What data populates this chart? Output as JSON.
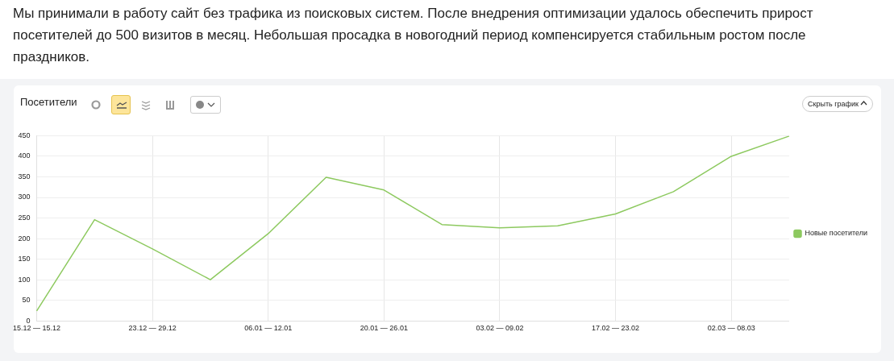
{
  "chart_data": {
    "type": "line",
    "title": "Посетители",
    "annotations": [
      "Мы принимали в работу сайт без трафика из поисковых систем. После внедрения оптимизации удалось обеспечить прирост посетителей до 500 визитов в месяц. Небольшая просадка в новогодний период компенсируется стабильным ростом после праздников.",
      "Скрыть график"
    ],
    "categories": [
      "15.12 — 15.12",
      null,
      "23.12 — 29.12",
      null,
      "06.01 — 12.01",
      null,
      "20.01 — 26.01",
      null,
      "03.02 — 09.02",
      null,
      "17.02 — 23.02",
      null,
      "02.03 — 08.03",
      null
    ],
    "series": [
      {
        "name": "Новые посетители",
        "color": "#8dc95f",
        "values": [
          24,
          246,
          175,
          100,
          212,
          349,
          318,
          234,
          226,
          231,
          260,
          314,
          400,
          449
        ]
      }
    ],
    "ylim": [
      0,
      450
    ],
    "yticks": [
      0,
      50,
      100,
      150,
      200,
      250,
      300,
      350,
      400,
      450
    ],
    "grid": true,
    "legend": "right",
    "marker": "none"
  }
}
